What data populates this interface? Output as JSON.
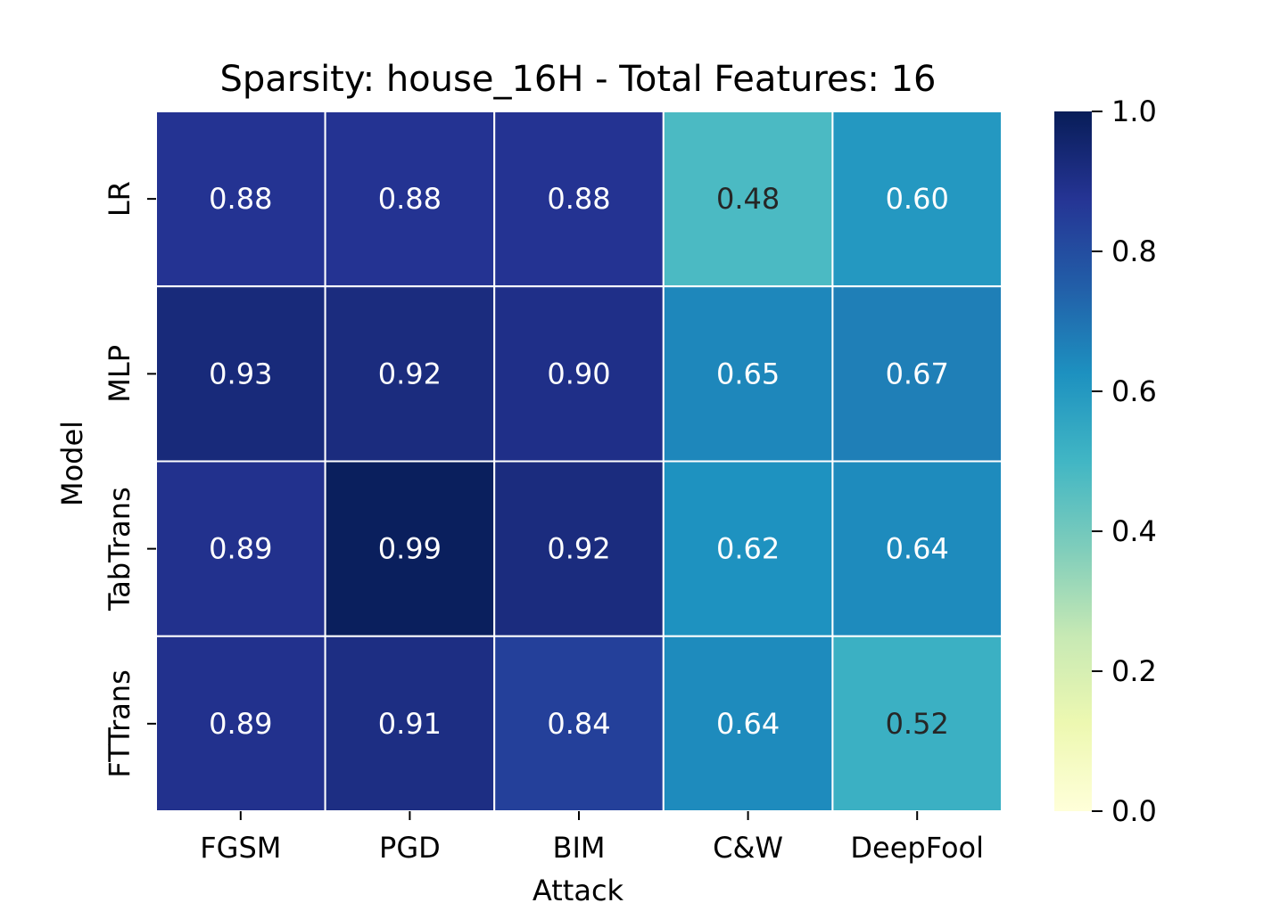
{
  "chart_data": {
    "type": "heatmap",
    "title": "Sparsity: house_16H - Total Features: 16",
    "xlabel": "Attack",
    "ylabel": "Model",
    "x_categories": [
      "FGSM",
      "PGD",
      "BIM",
      "C&W",
      "DeepFool"
    ],
    "y_categories": [
      "LR",
      "MLP",
      "TabTrans",
      "FTTrans"
    ],
    "values": [
      [
        0.88,
        0.88,
        0.88,
        0.48,
        0.6
      ],
      [
        0.93,
        0.92,
        0.9,
        0.65,
        0.67
      ],
      [
        0.89,
        0.99,
        0.92,
        0.62,
        0.64
      ],
      [
        0.89,
        0.91,
        0.84,
        0.64,
        0.52
      ]
    ],
    "value_format": "0.00",
    "colormap": "YlGnBu",
    "vmin": 0.0,
    "vmax": 1.0,
    "colorbar_ticks": [
      "0.0",
      "0.2",
      "0.4",
      "0.6",
      "0.8",
      "1.0"
    ],
    "colormap_stops": [
      "#ffffd9",
      "#edf8b1",
      "#c7e9b4",
      "#7fcdbb",
      "#41b6c4",
      "#1d91c0",
      "#225ea8",
      "#253494",
      "#081d58"
    ],
    "annotation_colors": {
      "dark_bg_text": "#ffffff",
      "light_bg_text": "#262626"
    },
    "grid_line_color": "#ffffff"
  }
}
